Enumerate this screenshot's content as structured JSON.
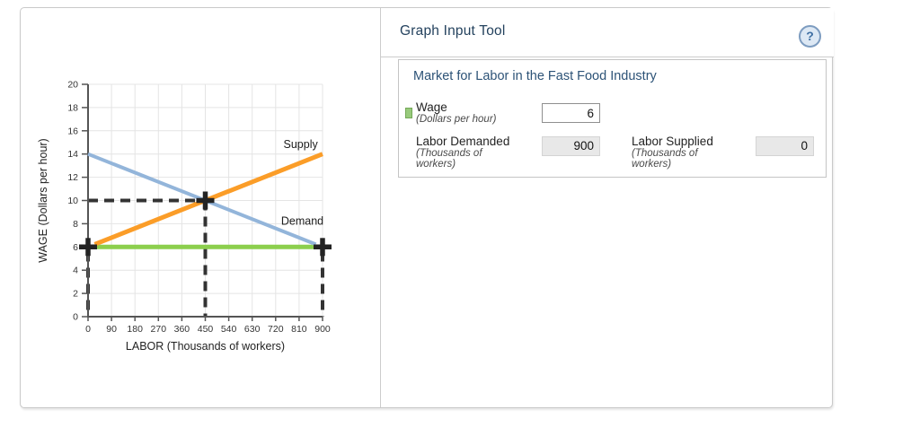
{
  "header": {
    "title": "Graph Input Tool",
    "help_glyph": "?"
  },
  "input_tool": {
    "title": "Market for Labor in the Fast Food Industry",
    "wage": {
      "label": "Wage",
      "sublabel": "(Dollars per hour)",
      "value": "6"
    },
    "labor_demanded": {
      "label": "Labor Demanded",
      "sublabel_lines": [
        "(Thousands of",
        "workers)"
      ],
      "value": "900"
    },
    "labor_supplied": {
      "label": "Labor Supplied",
      "sublabel_lines": [
        "(Thousands of",
        "workers)"
      ],
      "value": "0"
    }
  },
  "colors": {
    "demand_line": "#93b5da",
    "supply_line": "#fb9d28",
    "wage_line": "#8ccf4d",
    "dashed_guides": "#333333",
    "marker": "#232323",
    "grid": "#e4e4e4",
    "axis": "#555555",
    "swatch": "#98ca7c"
  },
  "chart_data": {
    "type": "line",
    "title": "",
    "xlabel": "LABOR (Thousands of workers)",
    "ylabel": "WAGE (Dollars per hour)",
    "xlim": [
      0,
      900
    ],
    "ylim": [
      0,
      20
    ],
    "xticks": [
      0,
      90,
      180,
      270,
      360,
      450,
      540,
      630,
      720,
      810,
      900
    ],
    "yticks": [
      0,
      2,
      4,
      6,
      8,
      10,
      12,
      14,
      16,
      18,
      20
    ],
    "grid": true,
    "legend_position": "inline-labels",
    "series": [
      {
        "name": "Demand",
        "x": [
          0,
          900
        ],
        "y": [
          14,
          6
        ],
        "color": "#93b5da",
        "width": 4,
        "label_at": [
          741,
          7.9
        ]
      },
      {
        "name": "Supply",
        "x": [
          0,
          900
        ],
        "y": [
          6,
          14
        ],
        "color": "#fb9d28",
        "width": 5,
        "label_at": [
          750,
          14.5
        ]
      },
      {
        "name": "Wage",
        "x": [
          0,
          900
        ],
        "y": [
          6,
          6
        ],
        "color": "#8ccf4d",
        "width": 5,
        "label_at": null
      }
    ],
    "dashed_guides": [
      {
        "from": [
          0,
          10
        ],
        "to": [
          450,
          10
        ]
      },
      {
        "from": [
          450,
          10
        ],
        "to": [
          450,
          0
        ]
      },
      {
        "from": [
          0,
          5.6
        ],
        "to": [
          0,
          0
        ]
      },
      {
        "from": [
          900,
          5.6
        ],
        "to": [
          900,
          0
        ]
      }
    ],
    "cross_markers": [
      {
        "x": 0,
        "y": 6
      },
      {
        "x": 450,
        "y": 10
      },
      {
        "x": 900,
        "y": 6
      }
    ],
    "equilibrium": {
      "x": 450,
      "y": 10
    }
  }
}
